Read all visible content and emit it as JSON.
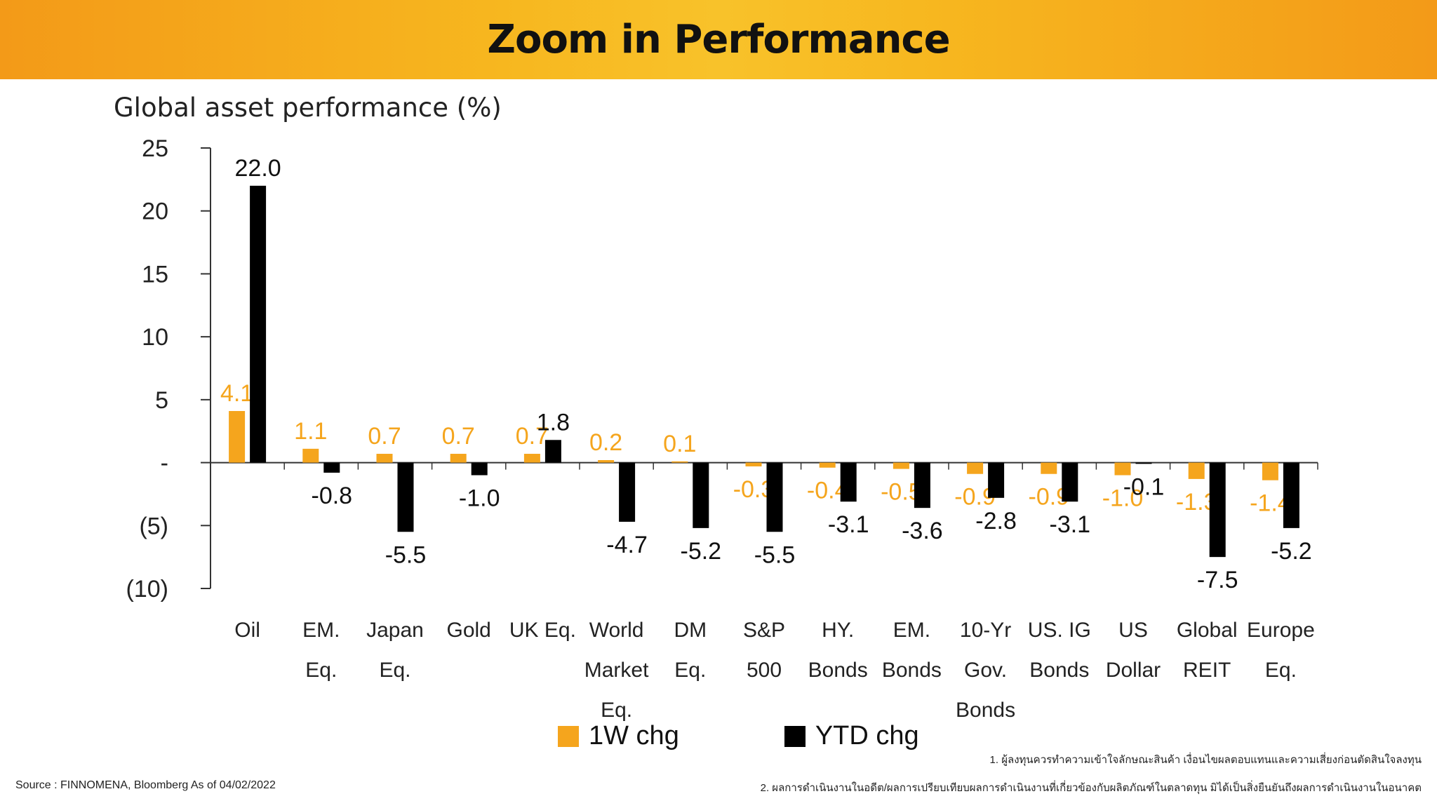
{
  "banner": {
    "title": "Zoom in Performance"
  },
  "footer": {
    "source": "Source : FINNOMENA, Bloomberg As of 04/02/2022",
    "note1": "1. ผู้ลงทุนควรทำความเข้าใจลักษณะสินค้า เงื่อนไขผลตอบแทนและความเสี่ยงก่อนตัดสินใจลงทุน",
    "note2": "2. ผลการดำเนินงานในอดีต/ผลการเปรียบเทียบผลการดำเนินงานที่เกี่ยวข้องกับผลิตภัณฑ์ในตลาดทุน มิได้เป็นสิ่งยืนยันถึงผลการดำเนินงานในอนาคต"
  },
  "colors": {
    "banner": "#f5a81c",
    "series_1w": "#f5a51d",
    "series_ytd": "#000000"
  },
  "chart_data": {
    "type": "bar",
    "title": "Global asset performance (%)",
    "ylim": [
      -10,
      25
    ],
    "yticks": [
      {
        "value": 25,
        "label": "25"
      },
      {
        "value": 20,
        "label": "20"
      },
      {
        "value": 15,
        "label": "15"
      },
      {
        "value": 10,
        "label": "10"
      },
      {
        "value": 5,
        "label": "5"
      },
      {
        "value": 0,
        "label": "-"
      },
      {
        "value": -5,
        "label": "(5)"
      },
      {
        "value": -10,
        "label": "(10)"
      }
    ],
    "categories": [
      [
        "Oil"
      ],
      [
        "EM.",
        "Eq."
      ],
      [
        "Japan",
        "Eq."
      ],
      [
        "Gold"
      ],
      [
        "UK Eq."
      ],
      [
        "World",
        "Market",
        "Eq."
      ],
      [
        "DM",
        "Eq."
      ],
      [
        "S&P",
        "500"
      ],
      [
        "HY.",
        "Bonds"
      ],
      [
        "EM.",
        "Bonds"
      ],
      [
        "10-Yr",
        "Gov.",
        "Bonds"
      ],
      [
        "US. IG",
        "Bonds"
      ],
      [
        "US",
        "Dollar"
      ],
      [
        "Global",
        "REIT"
      ],
      [
        "Europe",
        "Eq."
      ]
    ],
    "series": [
      {
        "name": "1W chg",
        "values": [
          4.1,
          1.1,
          0.7,
          0.7,
          0.7,
          0.2,
          0.1,
          -0.3,
          -0.4,
          -0.5,
          -0.9,
          -0.9,
          -1.0,
          -1.3,
          -1.4
        ],
        "labels": [
          "4.1",
          "1.1",
          "0.7",
          "0.7",
          "0.7",
          "0.2",
          "0.1",
          "-0.3",
          "-0.4",
          "-0.5",
          "-0.9",
          "-0.9",
          "-1.0",
          "-1.3",
          "-1.4"
        ]
      },
      {
        "name": "YTD chg",
        "values": [
          22.0,
          -0.8,
          -5.5,
          -1.0,
          1.8,
          -4.7,
          -5.2,
          -5.5,
          -3.1,
          -3.6,
          -2.8,
          -3.1,
          -0.1,
          -7.5,
          -5.2
        ],
        "labels": [
          "22.0",
          "-0.8",
          "-5.5",
          "-1.0",
          "1.8",
          "-4.7",
          "-5.2",
          "-5.5",
          "-3.1",
          "-3.6",
          "-2.8",
          "-3.1",
          "-0.1",
          "-7.5",
          "-5.2"
        ]
      }
    ]
  }
}
